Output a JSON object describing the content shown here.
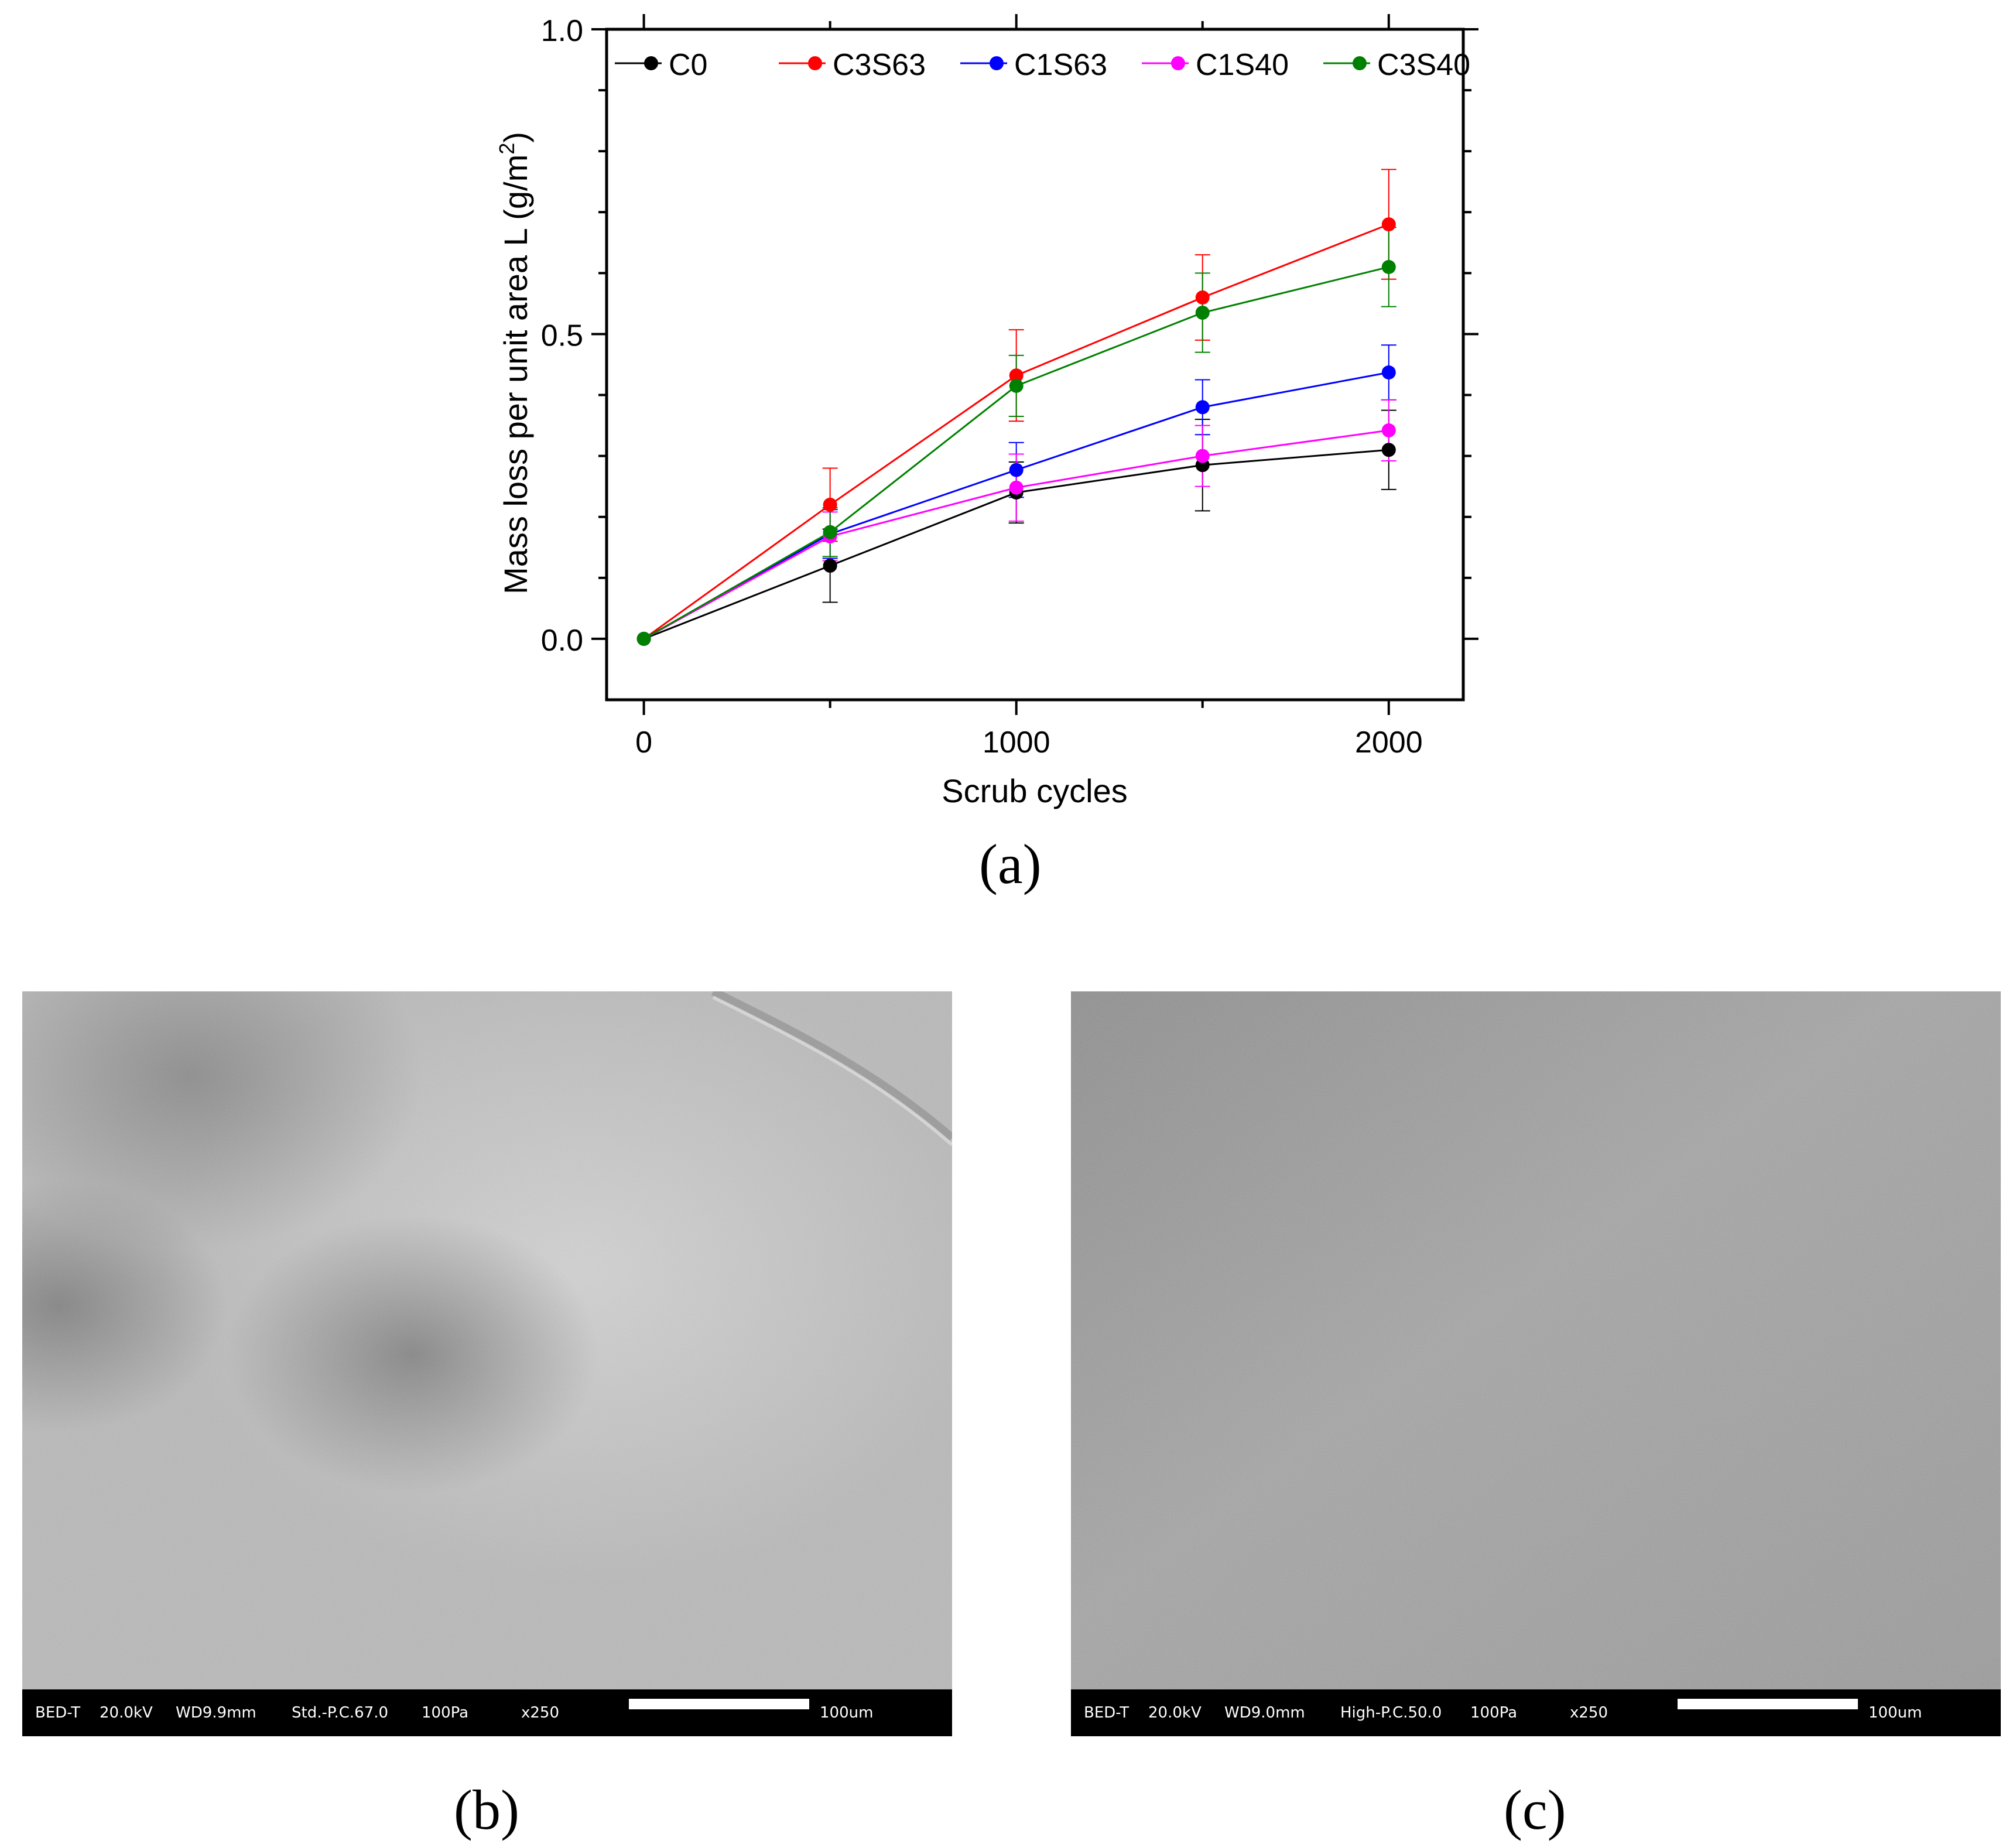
{
  "chart_data": {
    "type": "line",
    "title": "",
    "xlabel": "Scrub cycles",
    "ylabel": "Mass loss per unit area L (g/m",
    "ylabel_sup": "2",
    "ylabel_close": ")",
    "xlim": [
      -100,
      2200
    ],
    "ylim": [
      -0.1,
      1.0
    ],
    "x_ticks": [
      0,
      1000,
      2000
    ],
    "x_tick_labels": [
      "0",
      "1000",
      "2000"
    ],
    "y_ticks": [
      0.0,
      0.5,
      1.0
    ],
    "y_tick_labels": [
      "0.0",
      "0.5",
      "1.0"
    ],
    "legend_position": "top",
    "x": [
      0,
      500,
      1000,
      1500,
      2000
    ],
    "series": [
      {
        "name": "C0",
        "color": "#000000",
        "values": [
          0,
          0.12,
          0.24,
          0.285,
          0.31
        ],
        "errors": [
          0,
          0.06,
          0.05,
          0.075,
          0.065
        ]
      },
      {
        "name": "C3S63",
        "color": "#ff0000",
        "values": [
          0,
          0.22,
          0.432,
          0.56,
          0.68
        ],
        "errors": [
          0,
          0.06,
          0.075,
          0.07,
          0.09
        ]
      },
      {
        "name": "C1S63",
        "color": "#0000ff",
        "values": [
          0,
          0.172,
          0.277,
          0.38,
          0.437
        ],
        "errors": [
          0,
          0.04,
          0.045,
          0.045,
          0.045
        ]
      },
      {
        "name": "C1S40",
        "color": "#ff00ff",
        "values": [
          0,
          0.168,
          0.248,
          0.3,
          0.342
        ],
        "errors": [
          0,
          0.04,
          0.055,
          0.05,
          0.05
        ]
      },
      {
        "name": "C3S40",
        "color": "#008000",
        "values": [
          0,
          0.175,
          0.415,
          0.535,
          0.61
        ],
        "errors": [
          0,
          0.04,
          0.05,
          0.065,
          0.065
        ]
      }
    ]
  },
  "panels": {
    "a": "(a)",
    "b": "(b)",
    "c": "(c)"
  },
  "sem_b": {
    "detector": "BED-T",
    "voltage": "20.0kV",
    "working_distance": "WD9.9mm",
    "mode": "Std.-P.C.67.0",
    "pressure": "100Pa",
    "magnification": "x250",
    "scale": "100um"
  },
  "sem_c": {
    "detector": "BED-T",
    "voltage": "20.0kV",
    "working_distance": "WD9.0mm",
    "mode": "High-P.C.50.0",
    "pressure": "100Pa",
    "magnification": "x250",
    "scale": "100um"
  }
}
